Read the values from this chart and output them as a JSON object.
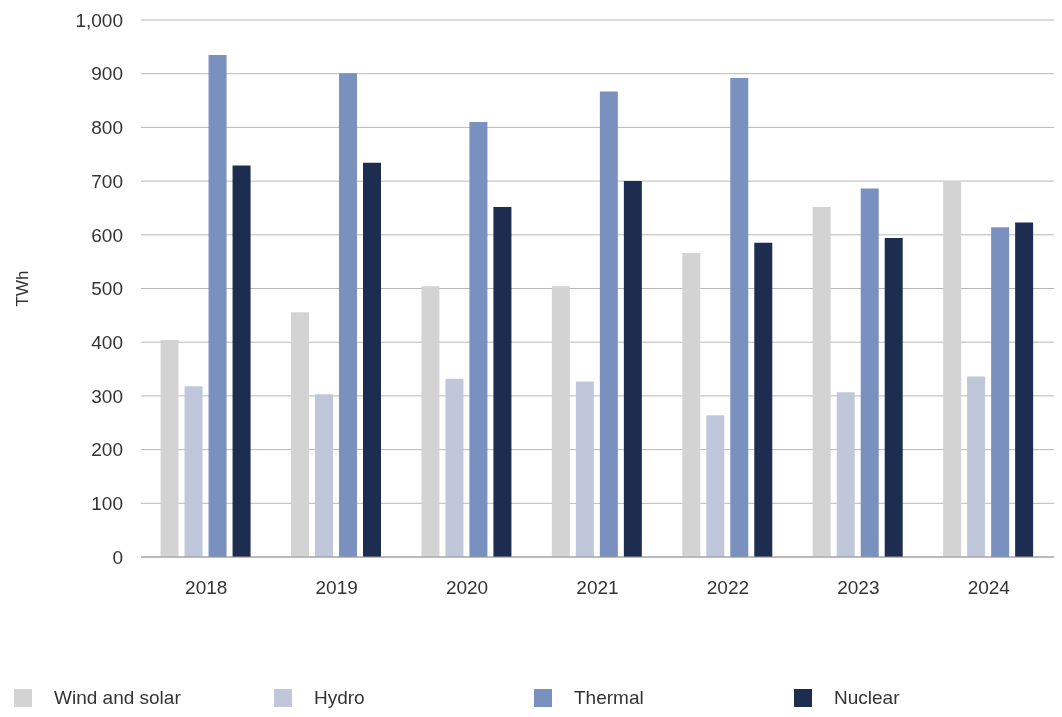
{
  "chart_data": {
    "type": "bar",
    "ylabel": "TWh",
    "categories": [
      "2018",
      "2019",
      "2020",
      "2021",
      "2022",
      "2023",
      "2024"
    ],
    "series": [
      {
        "name": "Wind and solar",
        "color": "#d3d3d3",
        "values": [
          404,
          456,
          504,
          504,
          566,
          652,
          700
        ]
      },
      {
        "name": "Hydro",
        "color": "#c0c7da",
        "values": [
          318,
          303,
          332,
          327,
          264,
          307,
          336
        ]
      },
      {
        "name": "Thermal",
        "color": "#7a90bf",
        "values": [
          935,
          901,
          810,
          867,
          892,
          686,
          614
        ]
      },
      {
        "name": "Nuclear",
        "color": "#1d2d4f",
        "values": [
          729,
          734,
          652,
          700,
          585,
          594,
          623
        ]
      }
    ],
    "ylim": [
      0,
      1000
    ],
    "yticks": [
      0,
      100,
      200,
      300,
      400,
      500,
      600,
      700,
      800,
      900,
      {
        "value": 1000,
        "label": "1,000"
      }
    ],
    "grid": "y",
    "legend": "bottom left"
  }
}
